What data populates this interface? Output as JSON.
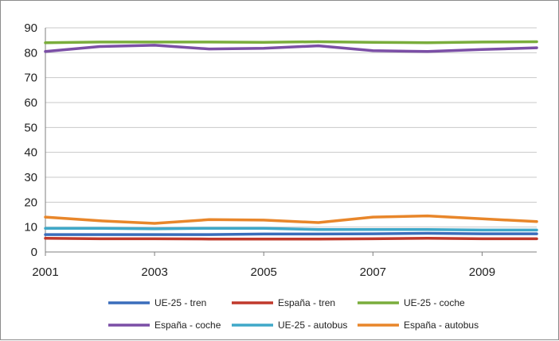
{
  "chart_data": {
    "type": "line",
    "x": [
      2001,
      2002,
      2003,
      2004,
      2005,
      2006,
      2007,
      2008,
      2009,
      2010
    ],
    "x_ticks": [
      "2001",
      "2003",
      "2005",
      "2007",
      "2009"
    ],
    "y_ticks": [
      "0",
      "10",
      "20",
      "30",
      "40",
      "50",
      "60",
      "70",
      "80",
      "90"
    ],
    "ylim": [
      0,
      90
    ],
    "grid": true,
    "legend_position": "bottom",
    "series": [
      {
        "name": "UE-25 - tren",
        "color": "#3a6dbb",
        "values": [
          7,
          7,
          7,
          7,
          7.2,
          7.2,
          7.3,
          7.5,
          7.3,
          7.3
        ]
      },
      {
        "name": "España - tren",
        "color": "#c0392b",
        "values": [
          5.5,
          5.3,
          5.3,
          5.2,
          5.2,
          5.2,
          5.3,
          5.5,
          5.3,
          5.3
        ]
      },
      {
        "name": "UE-25 - coche",
        "color": "#7aad3c",
        "values": [
          84,
          84.3,
          84.3,
          84.3,
          84.2,
          84.4,
          84.2,
          84,
          84.3,
          84.4
        ]
      },
      {
        "name": "España - coche",
        "color": "#7b4fa6",
        "values": [
          80.5,
          82.5,
          83,
          81.5,
          81.8,
          82.8,
          80.8,
          80.5,
          81.3,
          82
        ]
      },
      {
        "name": "UE-25 - autobus",
        "color": "#3fa8c8",
        "values": [
          9.5,
          9.5,
          9.3,
          9.5,
          9.5,
          9,
          9,
          9,
          8.8,
          8.8
        ]
      },
      {
        "name": "España - autobus",
        "color": "#e8862a",
        "values": [
          14,
          12.5,
          11.5,
          13,
          12.8,
          11.8,
          14,
          14.5,
          13.3,
          12.2
        ]
      }
    ]
  }
}
